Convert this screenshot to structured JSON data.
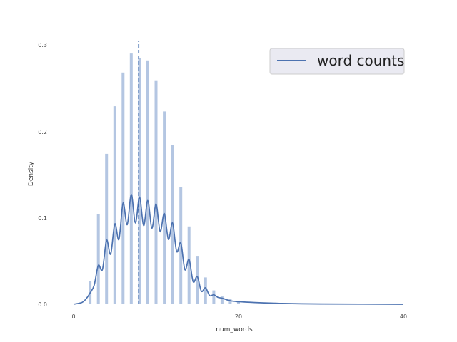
{
  "chart_data": {
    "type": "bar",
    "title": "",
    "xlabel": "num_words",
    "ylabel": "Density",
    "xlim": [
      0,
      40
    ],
    "ylim": [
      0,
      0.3
    ],
    "x_ticks": [
      "0",
      "20",
      "40"
    ],
    "y_ticks": [
      "0.0",
      "0.1",
      "0.2",
      "0.3"
    ],
    "grid": false,
    "legend": {
      "placement": "top-right",
      "entries": [
        "word counts"
      ]
    },
    "colors": {
      "bars": "#b4c6e2",
      "kde": "#4c72b0",
      "mean_line": "#2f5fa8",
      "legend_bg": "#eaeaf2"
    },
    "histogram": {
      "x": [
        2,
        3,
        4,
        5,
        6,
        7,
        8,
        9,
        10,
        11,
        12,
        13,
        14,
        15,
        16,
        17,
        18,
        19,
        20
      ],
      "density": [
        0.027,
        0.104,
        0.174,
        0.229,
        0.268,
        0.29,
        0.285,
        0.282,
        0.259,
        0.223,
        0.184,
        0.136,
        0.09,
        0.056,
        0.031,
        0.016,
        0.009,
        0.006,
        0.003
      ]
    },
    "series": [
      {
        "name": "word counts",
        "type": "line",
        "x": [
          0,
          1,
          1.5,
          2,
          2.5,
          3,
          3.5,
          4,
          4.5,
          5,
          5.5,
          6,
          6.5,
          7,
          7.5,
          8,
          8.5,
          9,
          9.5,
          10,
          10.5,
          11,
          11.5,
          12,
          12.5,
          13,
          13.5,
          14,
          14.5,
          15,
          15.5,
          16,
          16.5,
          17,
          17.5,
          18,
          19,
          20,
          22,
          25,
          30,
          40
        ],
        "values": [
          0,
          0.002,
          0.006,
          0.013,
          0.022,
          0.045,
          0.04,
          0.074,
          0.058,
          0.093,
          0.075,
          0.117,
          0.092,
          0.127,
          0.094,
          0.124,
          0.091,
          0.12,
          0.088,
          0.116,
          0.084,
          0.105,
          0.075,
          0.094,
          0.061,
          0.071,
          0.04,
          0.052,
          0.026,
          0.032,
          0.015,
          0.019,
          0.01,
          0.011,
          0.008,
          0.007,
          0.004,
          0.003,
          0.002,
          0.001,
          0.0003,
          0
        ]
      }
    ],
    "mean_line": {
      "x": 7.9
    }
  }
}
